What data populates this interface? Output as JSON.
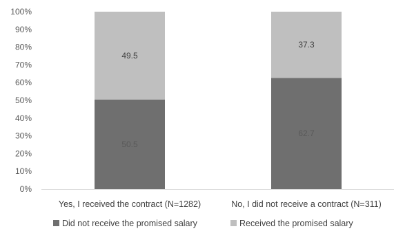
{
  "chart_data": {
    "type": "bar",
    "stacked": true,
    "percent_axis": true,
    "categories": [
      "Yes, I received the contract (N=1282)",
      "No, I did not receive a contract (N=311)"
    ],
    "series": [
      {
        "name": "Did not receive the promised salary",
        "values": [
          50.5,
          62.7
        ],
        "color": "#6f6f6f",
        "label_color": "#595959"
      },
      {
        "name": "Received the promised salary",
        "values": [
          49.5,
          37.3
        ],
        "color": "#bfbfbf",
        "label_color": "#404040"
      }
    ],
    "ylim": [
      0,
      100
    ],
    "yticks": [
      0,
      10,
      20,
      30,
      40,
      50,
      60,
      70,
      80,
      90,
      100
    ],
    "ytick_labels": [
      "0%",
      "10%",
      "20%",
      "30%",
      "40%",
      "50%",
      "60%",
      "70%",
      "80%",
      "90%",
      "100%"
    ],
    "data_labels": [
      [
        "50.5",
        "62.7"
      ],
      [
        "49.5",
        "37.3"
      ]
    ],
    "legend_position": "bottom",
    "grid": false
  }
}
